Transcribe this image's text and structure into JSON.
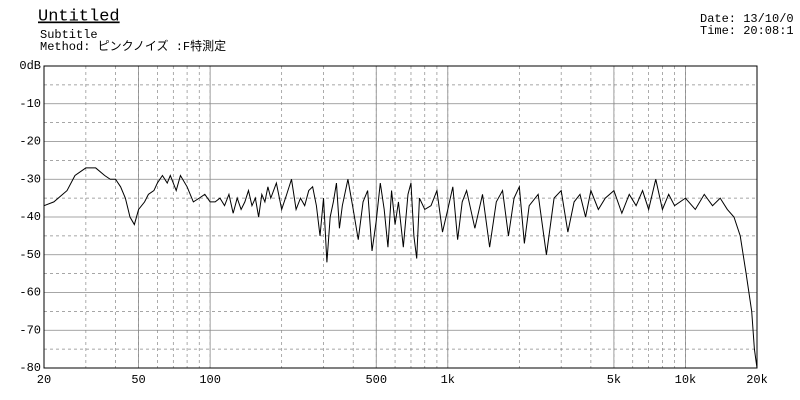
{
  "header": {
    "title": "Untitled",
    "subtitle": "Subtitle",
    "method": "Method: ピンクノイズ :F特測定",
    "date": "Date: 13/10/0",
    "time": "Time: 20:08:1"
  },
  "chart_data": {
    "type": "line",
    "log_x": true,
    "grid": true,
    "color": "#000000",
    "xlim": [
      20,
      20000
    ],
    "ylim": [
      -80,
      0
    ],
    "xticks": [
      20,
      50,
      100,
      500,
      {
        "value": 1000,
        "label": "1k"
      },
      {
        "value": 5000,
        "label": "5k"
      },
      {
        "value": 10000,
        "label": "10k"
      },
      {
        "value": 20000,
        "label": "20k"
      }
    ],
    "yticks": [
      {
        "value": 0,
        "label": "0dB"
      },
      -10,
      -20,
      -30,
      -40,
      -50,
      -60,
      -70,
      -80
    ],
    "x": [
      20,
      22,
      25,
      27,
      30,
      33,
      36,
      38,
      40,
      42,
      44,
      46,
      48,
      50,
      53,
      55,
      58,
      60,
      63,
      66,
      68,
      72,
      75,
      80,
      85,
      90,
      95,
      100,
      105,
      110,
      115,
      120,
      125,
      130,
      135,
      140,
      145,
      150,
      155,
      160,
      165,
      170,
      175,
      180,
      190,
      200,
      210,
      220,
      230,
      240,
      250,
      260,
      270,
      280,
      290,
      300,
      310,
      320,
      330,
      340,
      350,
      360,
      380,
      400,
      420,
      440,
      460,
      480,
      500,
      520,
      540,
      560,
      580,
      600,
      620,
      650,
      680,
      700,
      720,
      740,
      760,
      800,
      850,
      900,
      950,
      1000,
      1050,
      1100,
      1150,
      1200,
      1300,
      1400,
      1500,
      1600,
      1700,
      1800,
      1900,
      2000,
      2100,
      2200,
      2400,
      2600,
      2800,
      3000,
      3200,
      3400,
      3600,
      3800,
      4000,
      4300,
      4600,
      5000,
      5400,
      5800,
      6200,
      6600,
      7000,
      7500,
      8000,
      8500,
      9000,
      10000,
      11000,
      12000,
      13000,
      14000,
      15000,
      16000,
      17000,
      18000,
      19000,
      19500,
      20000
    ],
    "values": [
      -37,
      -36,
      -33,
      -29,
      -27,
      -27,
      -29,
      -30,
      -30,
      -32,
      -35,
      -40,
      -42,
      -38,
      -36,
      -34,
      -33,
      -31,
      -29,
      -31,
      -29,
      -33,
      -29,
      -32,
      -36,
      -35,
      -34,
      -36,
      -36,
      -35,
      -37,
      -34,
      -39,
      -35,
      -38,
      -36,
      -33,
      -37,
      -35,
      -40,
      -34,
      -36,
      -32,
      -35,
      -31,
      -38,
      -34,
      -30,
      -38,
      -35,
      -37,
      -33,
      -32,
      -37,
      -45,
      -35,
      -52,
      -40,
      -36,
      -31,
      -43,
      -37,
      -30,
      -38,
      -46,
      -36,
      -33,
      -49,
      -41,
      -31,
      -38,
      -48,
      -33,
      -42,
      -36,
      -48,
      -34,
      -31,
      -45,
      -51,
      -35,
      -38,
      -37,
      -33,
      -44,
      -38,
      -32,
      -46,
      -36,
      -33,
      -43,
      -34,
      -48,
      -36,
      -33,
      -45,
      -35,
      -32,
      -47,
      -37,
      -34,
      -50,
      -35,
      -33,
      -44,
      -36,
      -34,
      -40,
      -33,
      -38,
      -35,
      -33,
      -39,
      -34,
      -37,
      -33,
      -38,
      -30,
      -38,
      -34,
      -37,
      -35,
      -38,
      -34,
      -37,
      -35,
      -38,
      -40,
      -45,
      -55,
      -65,
      -75,
      -80
    ]
  }
}
